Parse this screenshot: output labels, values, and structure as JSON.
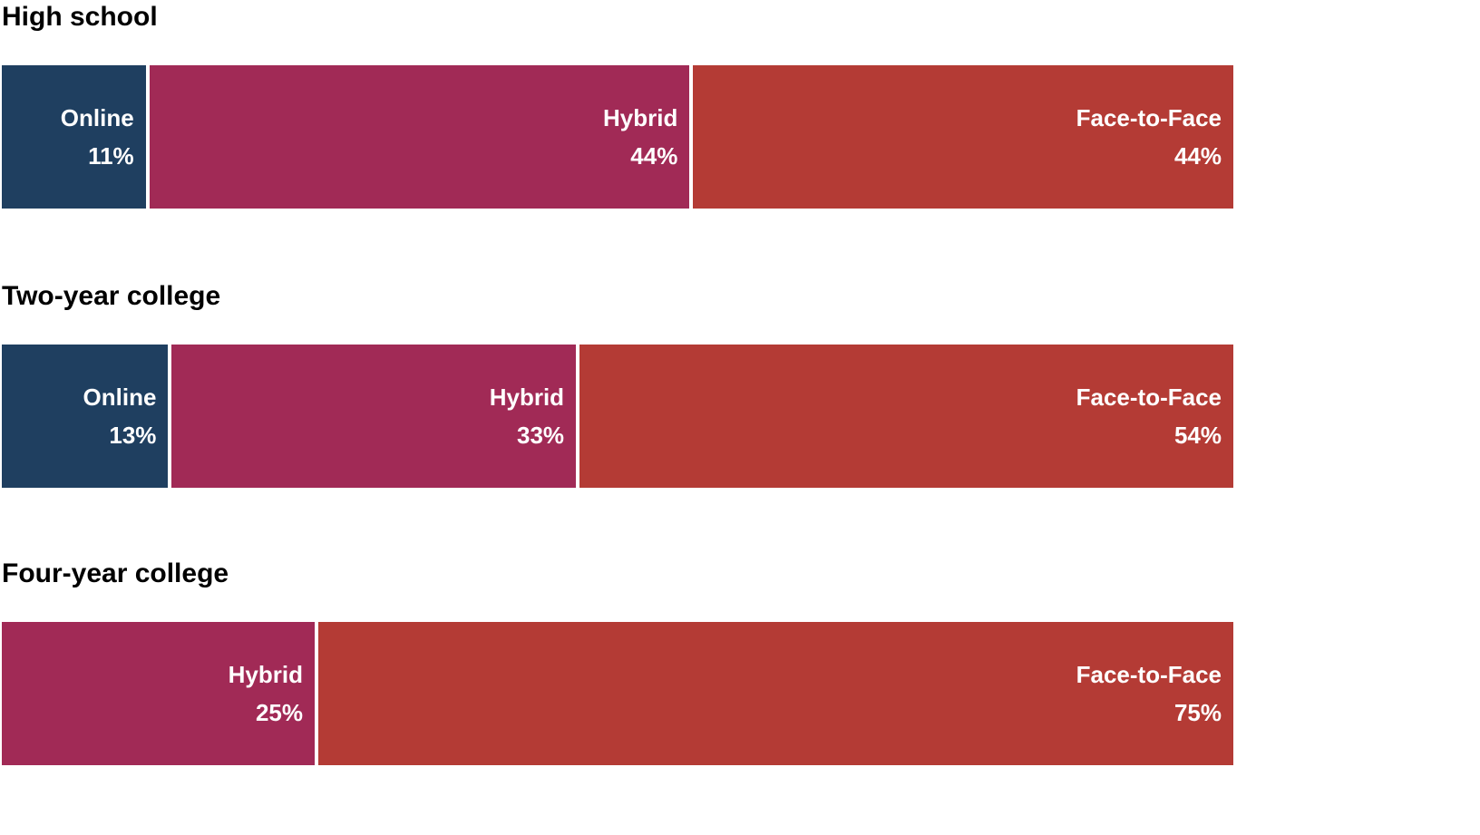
{
  "chart_data": {
    "type": "bar",
    "orientation": "horizontal",
    "stacked": true,
    "grid": false,
    "legend": false,
    "value_suffix": "%",
    "label_text_color": "#ffffff",
    "title_text_color": "#000000",
    "series_colors": {
      "Online": "#1f3f60",
      "Hybrid": "#a12a56",
      "Face-to-Face": "#b43b35"
    },
    "groups": [
      {
        "label": "High school",
        "segments": [
          {
            "name": "Online",
            "value": 11,
            "value_label": "11%"
          },
          {
            "name": "Hybrid",
            "value": 44,
            "value_label": "44%"
          },
          {
            "name": "Face-to-Face",
            "value": 44,
            "value_label": "44%"
          }
        ]
      },
      {
        "label": "Two-year college",
        "segments": [
          {
            "name": "Online",
            "value": 13,
            "value_label": "13%"
          },
          {
            "name": "Hybrid",
            "value": 33,
            "value_label": "33%"
          },
          {
            "name": "Face-to-Face",
            "value": 54,
            "value_label": "54%"
          }
        ]
      },
      {
        "label": "Four-year college",
        "segments": [
          {
            "name": "Hybrid",
            "value": 25,
            "value_label": "25%"
          },
          {
            "name": "Face-to-Face",
            "value": 75,
            "value_label": "75%"
          }
        ]
      }
    ]
  }
}
